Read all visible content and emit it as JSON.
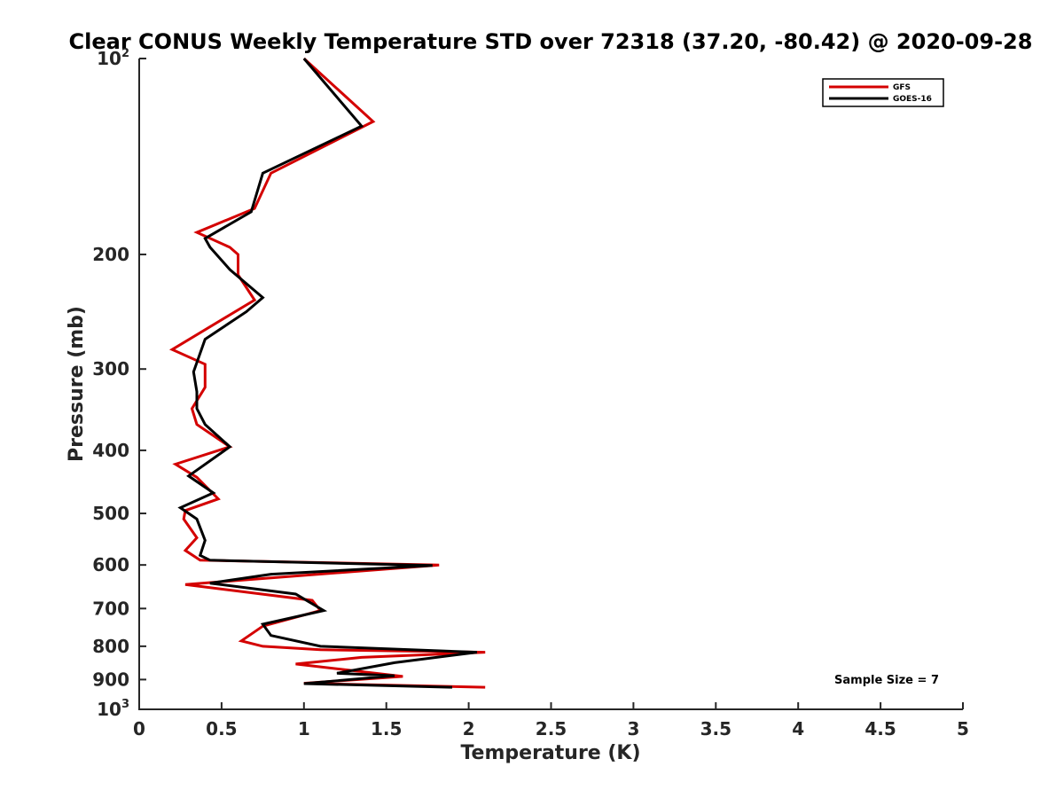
{
  "chart_data": {
    "type": "line",
    "title": "Clear CONUS Weekly Temperature STD over 72318 (37.20, -80.42) @ 2020-09-28",
    "xlabel": "Temperature (K)",
    "ylabel": "Pressure (mb)",
    "xlim": [
      0,
      5
    ],
    "ylim": [
      100,
      1000
    ],
    "y_scale": "log",
    "y_reversed": true,
    "grid": false,
    "legend_position": "top-right",
    "x_ticks": [
      "0",
      "0.5",
      "1",
      "1.5",
      "2",
      "2.5",
      "3",
      "3.5",
      "4",
      "4.5",
      "5"
    ],
    "x_tick_values": [
      0,
      0.5,
      1,
      1.5,
      2,
      2.5,
      3,
      3.5,
      4,
      4.5,
      5
    ],
    "y_ticks": [
      {
        "value": 100,
        "base": "10",
        "exp": "2"
      },
      {
        "value": 200,
        "label": "200"
      },
      {
        "value": 300,
        "label": "300"
      },
      {
        "value": 400,
        "label": "400"
      },
      {
        "value": 500,
        "label": "500"
      },
      {
        "value": 600,
        "label": "600"
      },
      {
        "value": 700,
        "label": "700"
      },
      {
        "value": 800,
        "label": "800"
      },
      {
        "value": 900,
        "label": "900"
      },
      {
        "value": 1000,
        "base": "10",
        "exp": "3"
      }
    ],
    "series": [
      {
        "name": "GFS",
        "color": "#d40000",
        "points": [
          [
            1.0,
            100
          ],
          [
            1.42,
            125
          ],
          [
            0.8,
            150
          ],
          [
            0.7,
            170
          ],
          [
            0.35,
            185
          ],
          [
            0.55,
            195
          ],
          [
            0.6,
            200
          ],
          [
            0.6,
            215
          ],
          [
            0.7,
            235
          ],
          [
            0.2,
            280
          ],
          [
            0.4,
            295
          ],
          [
            0.4,
            320
          ],
          [
            0.32,
            345
          ],
          [
            0.35,
            365
          ],
          [
            0.55,
            395
          ],
          [
            0.22,
            420
          ],
          [
            0.35,
            440
          ],
          [
            0.48,
            475
          ],
          [
            0.28,
            495
          ],
          [
            0.27,
            510
          ],
          [
            0.35,
            545
          ],
          [
            0.28,
            570
          ],
          [
            0.37,
            590
          ],
          [
            1.82,
            600
          ],
          [
            0.28,
            643
          ],
          [
            1.05,
            680
          ],
          [
            1.1,
            705
          ],
          [
            0.75,
            745
          ],
          [
            0.62,
            785
          ],
          [
            0.75,
            800
          ],
          [
            1.1,
            810
          ],
          [
            2.1,
            817
          ],
          [
            1.35,
            832
          ],
          [
            0.95,
            852
          ],
          [
            1.6,
            890
          ],
          [
            1.0,
            912
          ],
          [
            2.1,
            925
          ]
        ]
      },
      {
        "name": "GOES-16",
        "color": "#000000",
        "points": [
          [
            1.0,
            100
          ],
          [
            1.35,
            127
          ],
          [
            0.75,
            150
          ],
          [
            0.68,
            172
          ],
          [
            0.4,
            189
          ],
          [
            0.43,
            195
          ],
          [
            0.55,
            211
          ],
          [
            0.75,
            233
          ],
          [
            0.65,
            245
          ],
          [
            0.4,
            270
          ],
          [
            0.33,
            303
          ],
          [
            0.35,
            325
          ],
          [
            0.35,
            345
          ],
          [
            0.4,
            365
          ],
          [
            0.55,
            395
          ],
          [
            0.3,
            438
          ],
          [
            0.45,
            465
          ],
          [
            0.25,
            490
          ],
          [
            0.35,
            510
          ],
          [
            0.4,
            550
          ],
          [
            0.37,
            580
          ],
          [
            0.43,
            590
          ],
          [
            1.78,
            601
          ],
          [
            0.8,
            620
          ],
          [
            0.43,
            640
          ],
          [
            0.95,
            665
          ],
          [
            1.12,
            705
          ],
          [
            0.75,
            740
          ],
          [
            0.8,
            770
          ],
          [
            1.1,
            800
          ],
          [
            2.05,
            817
          ],
          [
            1.55,
            848
          ],
          [
            1.47,
            855
          ],
          [
            1.2,
            880
          ],
          [
            1.55,
            888
          ],
          [
            1.0,
            913
          ],
          [
            1.9,
            925
          ]
        ]
      }
    ],
    "annotation": "Sample Size = 7"
  }
}
